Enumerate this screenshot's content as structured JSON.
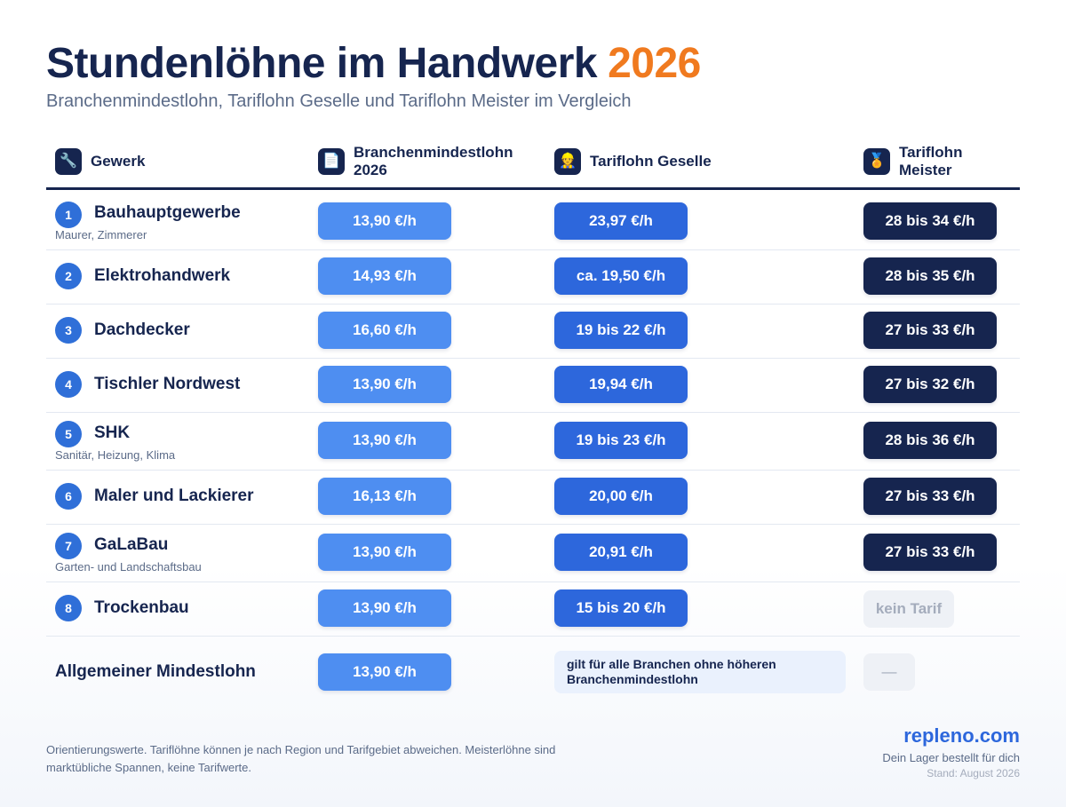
{
  "title": "Stundenlöhne im Handwerk",
  "title_year": "2026",
  "subtitle": "Branchenmindestlohn, Tariflohn Geselle und Tariflohn Meister im Vergleich",
  "columns": [
    {
      "label": "Gewerk",
      "icon": "wrench-icon",
      "glyph": "🔧"
    },
    {
      "label_line1": "Branchenmindestlohn",
      "label_line2": "2026",
      "icon": "document-icon",
      "glyph": "📄"
    },
    {
      "label": "Tariflohn Geselle",
      "icon": "worker-icon",
      "glyph": "👷"
    },
    {
      "label_line1": "Tariflohn",
      "label_line2": "Meister",
      "icon": "medal-icon",
      "glyph": "🏅"
    }
  ],
  "rows": [
    {
      "num": "1",
      "trade": "Bauhauptgewerbe",
      "sub": "Maurer, Zimmerer",
      "min": "13,90 €/h",
      "geselle": "23,97 €/h",
      "meister": "28 bis 34 €/h"
    },
    {
      "num": "2",
      "trade": "Elektrohandwerk",
      "sub": "",
      "min": "14,93 €/h",
      "geselle": "ca. 19,50 €/h",
      "meister": "28 bis 35 €/h"
    },
    {
      "num": "3",
      "trade": "Dachdecker",
      "sub": "",
      "min": "16,60 €/h",
      "geselle": "19 bis 22 €/h",
      "meister": "27 bis 33 €/h"
    },
    {
      "num": "4",
      "trade": "Tischler Nordwest",
      "sub": "",
      "min": "13,90 €/h",
      "geselle": "19,94 €/h",
      "meister": "27 bis 32 €/h"
    },
    {
      "num": "5",
      "trade": "SHK",
      "sub": "Sanitär, Heizung, Klima",
      "min": "13,90 €/h",
      "geselle": "19 bis 23 €/h",
      "meister": "28 bis 36 €/h"
    },
    {
      "num": "6",
      "trade": "Maler und Lackierer",
      "sub": "",
      "min": "16,13 €/h",
      "geselle": "20,00 €/h",
      "meister": "27 bis 33 €/h"
    },
    {
      "num": "7",
      "trade": "GaLaBau",
      "sub": "Garten- und Landschaftsbau",
      "min": "13,90 €/h",
      "geselle": "20,91 €/h",
      "meister": "27 bis 33 €/h"
    },
    {
      "num": "8",
      "trade": "Trockenbau",
      "sub": "",
      "min": "13,90 €/h",
      "geselle": "15 bis 20 €/h",
      "meister": "kein Tarif"
    }
  ],
  "general": {
    "label": "Allgemeiner Mindestlohn",
    "min": "13,90 €/h",
    "note": "gilt für alle Branchen ohne höheren Branchenmindestlohn",
    "meister": "—"
  },
  "footnote": "Orientierungswerte. Tariflöhne können je nach Region und Tarifgebiet abweichen. Meisterlöhne sind marktübliche Spannen, keine Tarifwerte.",
  "brand": {
    "name": "repleno.com",
    "tagline": "Dein Lager bestellt für dich",
    "date": "Stand: August 2026"
  },
  "colors": {
    "navy": "#16254f",
    "accent_orange": "#f07a1f",
    "min_blue": "#4e8ef1",
    "geselle_blue": "#2d67dc",
    "meister_navy": "#16254f"
  }
}
